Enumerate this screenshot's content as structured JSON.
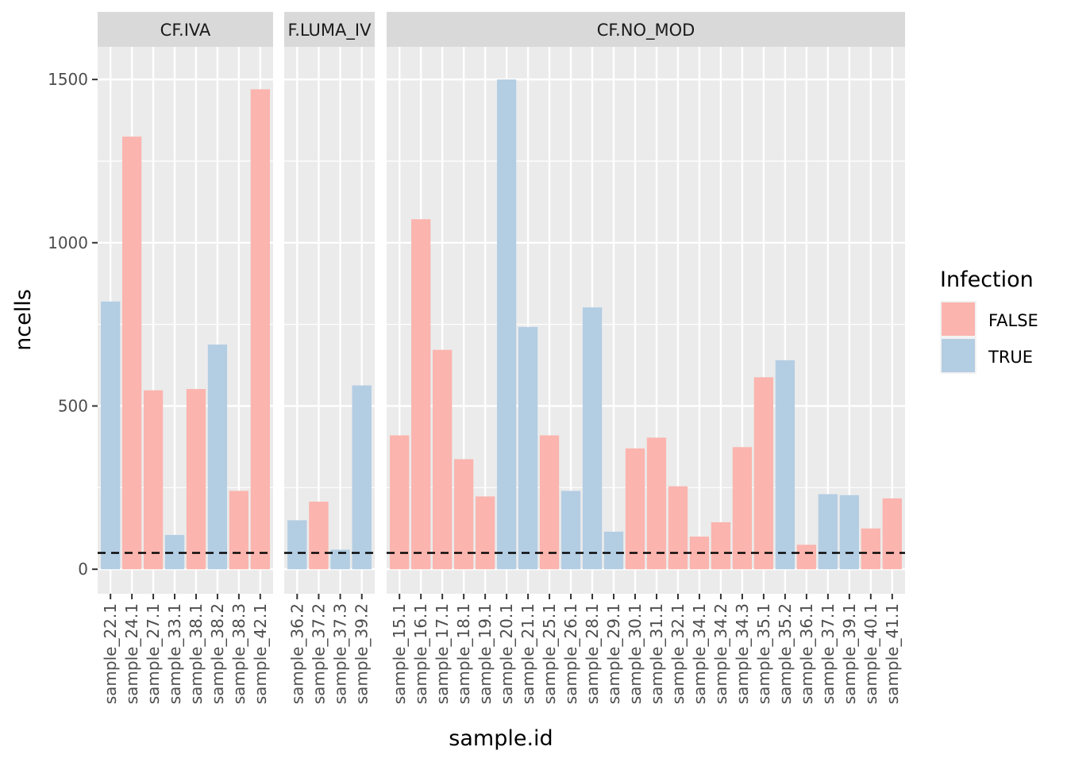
{
  "chart_data": {
    "type": "bar",
    "ylabel": "ncells",
    "xlabel": "sample.id",
    "ylim": [
      -75,
      1600
    ],
    "yticks": [
      0,
      500,
      1000,
      1500
    ],
    "ytick_labels": [
      "0",
      "500",
      "1000",
      "1500"
    ],
    "threshold": 50,
    "threshold_style": "dashed",
    "legend": {
      "title": "Infection",
      "position": "right",
      "entries": [
        {
          "label": "FALSE",
          "color": "#FBB4AE"
        },
        {
          "label": "TRUE",
          "color": "#B3CDE3"
        }
      ]
    },
    "panels": [
      {
        "label": "CF.IVA",
        "bars": [
          {
            "sample": "sample_22.1",
            "value": 820,
            "infection": "TRUE"
          },
          {
            "sample": "sample_24.1",
            "value": 1325,
            "infection": "FALSE"
          },
          {
            "sample": "sample_27.1",
            "value": 548,
            "infection": "FALSE"
          },
          {
            "sample": "sample_33.1",
            "value": 105,
            "infection": "TRUE"
          },
          {
            "sample": "sample_38.1",
            "value": 552,
            "infection": "FALSE"
          },
          {
            "sample": "sample_38.2",
            "value": 688,
            "infection": "TRUE"
          },
          {
            "sample": "sample_38.3",
            "value": 240,
            "infection": "FALSE"
          },
          {
            "sample": "sample_42.1",
            "value": 1470,
            "infection": "FALSE"
          }
        ]
      },
      {
        "label": "F.LUMA_IV",
        "bars": [
          {
            "sample": "sample_36.2",
            "value": 150,
            "infection": "TRUE"
          },
          {
            "sample": "sample_37.2",
            "value": 207,
            "infection": "FALSE"
          },
          {
            "sample": "sample_37.3",
            "value": 60,
            "infection": "TRUE"
          },
          {
            "sample": "sample_39.2",
            "value": 563,
            "infection": "TRUE"
          }
        ]
      },
      {
        "label": "CF.NO_MOD",
        "bars": [
          {
            "sample": "sample_15.1",
            "value": 410,
            "infection": "FALSE"
          },
          {
            "sample": "sample_16.1",
            "value": 1072,
            "infection": "FALSE"
          },
          {
            "sample": "sample_17.1",
            "value": 672,
            "infection": "FALSE"
          },
          {
            "sample": "sample_18.1",
            "value": 337,
            "infection": "FALSE"
          },
          {
            "sample": "sample_19.1",
            "value": 223,
            "infection": "FALSE"
          },
          {
            "sample": "sample_20.1",
            "value": 1500,
            "infection": "TRUE"
          },
          {
            "sample": "sample_21.1",
            "value": 742,
            "infection": "TRUE"
          },
          {
            "sample": "sample_25.1",
            "value": 410,
            "infection": "FALSE"
          },
          {
            "sample": "sample_26.1",
            "value": 240,
            "infection": "TRUE"
          },
          {
            "sample": "sample_28.1",
            "value": 802,
            "infection": "TRUE"
          },
          {
            "sample": "sample_29.1",
            "value": 115,
            "infection": "TRUE"
          },
          {
            "sample": "sample_30.1",
            "value": 370,
            "infection": "FALSE"
          },
          {
            "sample": "sample_31.1",
            "value": 403,
            "infection": "FALSE"
          },
          {
            "sample": "sample_32.1",
            "value": 254,
            "infection": "FALSE"
          },
          {
            "sample": "sample_34.1",
            "value": 100,
            "infection": "FALSE"
          },
          {
            "sample": "sample_34.2",
            "value": 144,
            "infection": "FALSE"
          },
          {
            "sample": "sample_34.3",
            "value": 374,
            "infection": "FALSE"
          },
          {
            "sample": "sample_35.1",
            "value": 588,
            "infection": "FALSE"
          },
          {
            "sample": "sample_35.2",
            "value": 640,
            "infection": "TRUE"
          },
          {
            "sample": "sample_36.1",
            "value": 75,
            "infection": "FALSE"
          },
          {
            "sample": "sample_37.1",
            "value": 230,
            "infection": "TRUE"
          },
          {
            "sample": "sample_39.1",
            "value": 227,
            "infection": "TRUE"
          },
          {
            "sample": "sample_40.1",
            "value": 125,
            "infection": "FALSE"
          },
          {
            "sample": "sample_41.1",
            "value": 217,
            "infection": "FALSE"
          }
        ]
      }
    ]
  }
}
